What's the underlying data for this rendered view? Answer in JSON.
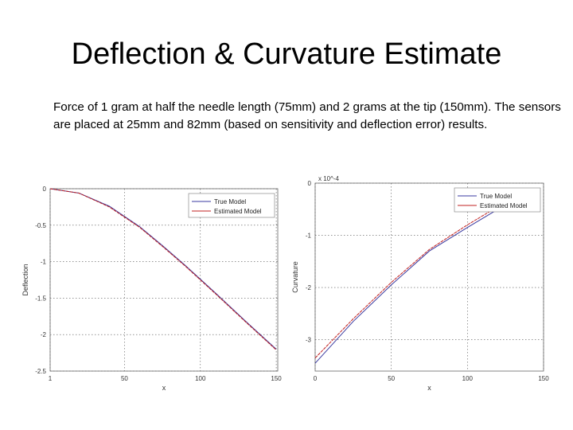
{
  "slide": {
    "title": "Deflection & Curvature Estimate",
    "body": "Force of 1 gram at half the needle length (75mm) and 2 grams at the tip (150mm). The sensors are placed at 25mm and 82mm (based on sensitivity and deflection error) results."
  },
  "chart_data": [
    {
      "type": "line",
      "title": "",
      "xlabel": "x",
      "ylabel": "Deflection",
      "xlim": [
        1,
        151
      ],
      "ylim": [
        -2.5,
        0
      ],
      "x_ticks": [
        "1",
        "50",
        "100",
        "150"
      ],
      "y_ticks": [
        "0",
        "-0.5",
        "-1",
        "-1.5",
        "-2",
        "-2.5"
      ],
      "grid": true,
      "legend": "top-right",
      "series": [
        {
          "name": "True Model",
          "color": "#3a3aa0",
          "x": [
            1,
            20,
            40,
            60,
            75,
            90,
            110,
            130,
            150
          ],
          "y": [
            0,
            -0.06,
            -0.24,
            -0.52,
            -0.78,
            -1.05,
            -1.43,
            -1.82,
            -2.2
          ]
        },
        {
          "name": "Estimated Model",
          "color": "#c02020",
          "x": [
            1,
            20,
            40,
            60,
            75,
            90,
            110,
            130,
            150
          ],
          "y": [
            0,
            -0.06,
            -0.25,
            -0.53,
            -0.79,
            -1.06,
            -1.44,
            -1.83,
            -2.21
          ]
        }
      ]
    },
    {
      "type": "line",
      "title": "",
      "xlabel": "x",
      "ylabel": "Curvature",
      "scale_label": "x 10^-4",
      "xlim": [
        0,
        150
      ],
      "ylim": [
        -3.6,
        0
      ],
      "x_ticks": [
        "0",
        "50",
        "100",
        "150"
      ],
      "y_ticks": [
        "0",
        "-1",
        "-2",
        "-3"
      ],
      "grid": true,
      "legend": "top-right",
      "series": [
        {
          "name": "True Model",
          "color": "#3a3aa0",
          "x": [
            0,
            25,
            50,
            75,
            100,
            120
          ],
          "y": [
            -3.45,
            -2.65,
            -1.95,
            -1.3,
            -0.85,
            -0.5
          ]
        },
        {
          "name": "Estimated Model",
          "color": "#c02020",
          "x": [
            0,
            25,
            50,
            75,
            100,
            120
          ],
          "y": [
            -3.35,
            -2.6,
            -1.9,
            -1.27,
            -0.8,
            -0.45
          ]
        }
      ]
    }
  ]
}
